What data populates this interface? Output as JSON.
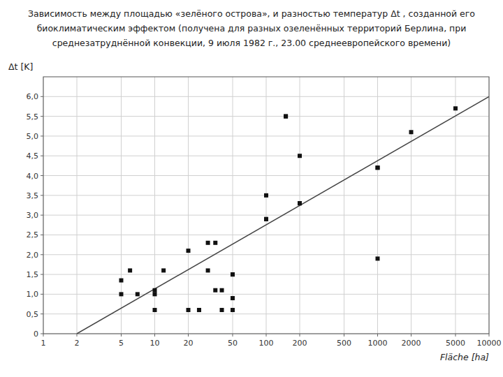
{
  "chart_data": {
    "type": "scatter",
    "title": [
      "Зависимость между площадью «зелёного острова», и разностью температур Δt , созданной его",
      "биоклиматическим эффектом (получена для разных озеленённых территорий Берлина, при",
      "среднезатруднённой конвекции, 9 июля 1982 г., 23.00 среднеевропейского времени)"
    ],
    "xlabel": "Fläche [ha]",
    "ylabel": "Δt [K]",
    "log": "x",
    "grid": true,
    "series": [
      {
        "type": "scatter",
        "marker": "square",
        "color": "#111111",
        "x": [
          5,
          5,
          6,
          7,
          10,
          10,
          10,
          12,
          20,
          20,
          25,
          25,
          30,
          30,
          35,
          35,
          40,
          40,
          50,
          50,
          50,
          50,
          50,
          100,
          100,
          100,
          150,
          150,
          200,
          200,
          200,
          1000,
          1000,
          1000,
          2000,
          5000
        ],
        "values": [
          1.0,
          1.35,
          1.6,
          1.0,
          1.0,
          1.1,
          0.6,
          1.6,
          2.1,
          0.6,
          0.6,
          0.6,
          1.6,
          2.3,
          2.3,
          1.1,
          1.1,
          0.6,
          1.5,
          1.5,
          1.5,
          0.9,
          0.6,
          2.9,
          2.9,
          3.5,
          5.5,
          5.5,
          4.5,
          3.3,
          3.3,
          4.2,
          4.2,
          1.9,
          5.1,
          5.7
        ]
      },
      {
        "type": "line",
        "line_style": "solid",
        "color": "#444444",
        "x": [
          2,
          10000
        ],
        "values": [
          0.0,
          6.0
        ]
      }
    ],
    "xlim": [
      1,
      10000
    ],
    "ylim": [
      0,
      6.5
    ],
    "xticks": [
      1,
      2,
      5,
      10,
      20,
      50,
      100,
      200,
      500,
      1000,
      2000,
      5000,
      10000
    ],
    "yticks": [
      0,
      {
        "value": 0.5,
        "label": "0,5"
      },
      {
        "value": 1.0,
        "label": "1,0"
      },
      {
        "value": 1.5,
        "label": "1,5"
      },
      {
        "value": 2.0,
        "label": "2,0"
      },
      {
        "value": 2.5,
        "label": "2,5"
      },
      {
        "value": 3.0,
        "label": "3,0"
      },
      {
        "value": 3.5,
        "label": "3,5"
      },
      {
        "value": 4.0,
        "label": "4,0"
      },
      {
        "value": 4.5,
        "label": "4,5"
      },
      {
        "value": 5.0,
        "label": "5,0"
      },
      {
        "value": 5.5,
        "label": "5,5"
      },
      {
        "value": 6.0,
        "label": "6,0"
      }
    ]
  }
}
